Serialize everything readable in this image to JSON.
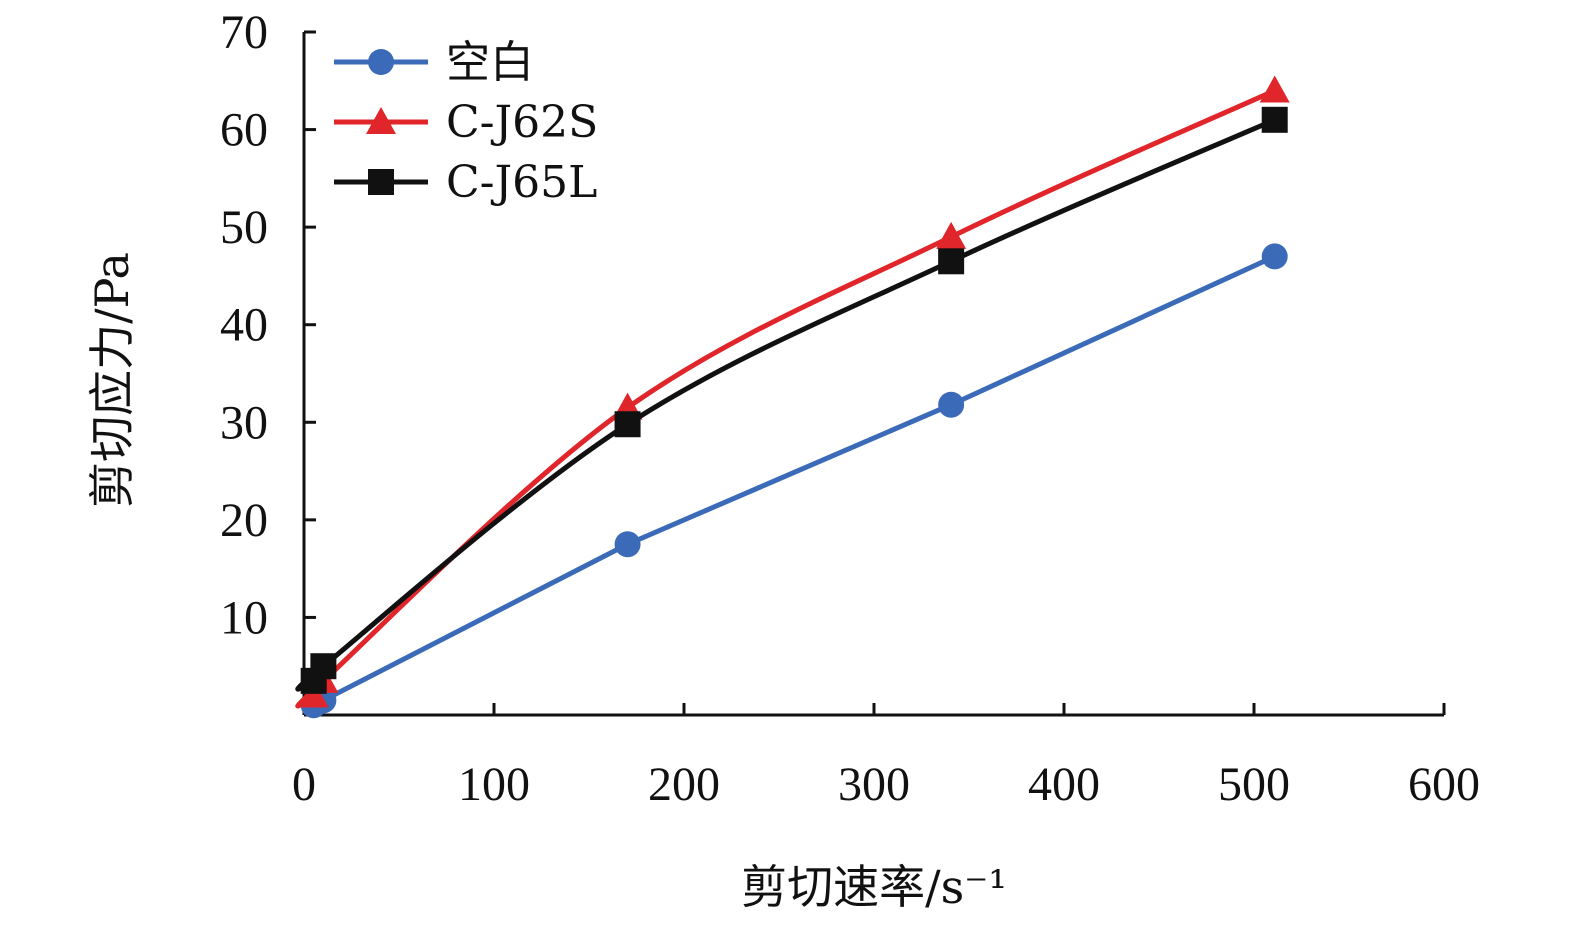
{
  "chart_data": {
    "type": "line",
    "xlabel": "剪切速率/s⁻¹",
    "ylabel": "剪切应力/Pa",
    "xlim": [
      0,
      600
    ],
    "ylim": [
      0,
      70
    ],
    "xticks": [
      "0",
      "100",
      "200",
      "300",
      "400",
      "500",
      "600"
    ],
    "yticks": [
      "10",
      "20",
      "30",
      "40",
      "50",
      "60",
      "70"
    ],
    "grid": false,
    "legend": "top-left",
    "series": [
      {
        "name": "空白",
        "color": "#3b6bb8",
        "marker": "circle",
        "x": [
          5.1,
          10.2,
          170.3,
          340.6,
          510.9
        ],
        "y": [
          1.0,
          1.5,
          17.5,
          31.8,
          47.0
        ]
      },
      {
        "name": "C-J62S",
        "color": "#e0262b",
        "marker": "triangle",
        "x": [
          5.1,
          10.2,
          170.3,
          340.6,
          510.9
        ],
        "y": [
          2.0,
          3.5,
          31.5,
          49.0,
          64.0
        ]
      },
      {
        "name": "C-J65L",
        "color": "#111111",
        "marker": "square",
        "x": [
          5.1,
          10.2,
          170.3,
          340.6,
          510.9
        ],
        "y": [
          3.5,
          5.0,
          29.8,
          46.5,
          61.0
        ]
      }
    ]
  }
}
